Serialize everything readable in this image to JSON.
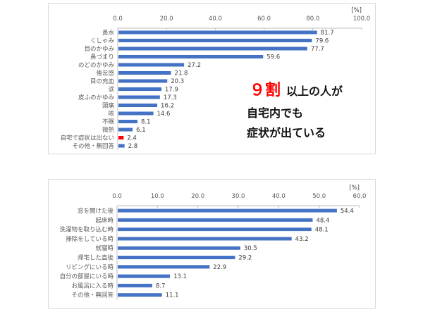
{
  "chart_data": [
    {
      "type": "bar",
      "orientation": "horizontal",
      "unit_label": "[%]",
      "xlim": [
        0,
        100
      ],
      "ticks": [
        "0.0",
        "20.0",
        "40.0",
        "60.0",
        "80.0",
        "100.0"
      ],
      "categories": [
        "鼻水",
        "くしゃみ",
        "目のかゆみ",
        "鼻づまり",
        "のどのかゆみ",
        "倦怠感",
        "目の充血",
        "涙",
        "皮ふのかゆみ",
        "頭痛",
        "咳",
        "不眠",
        "微熱",
        "自宅で症状は出ない",
        "その他・無回答"
      ],
      "values": [
        81.7,
        79.6,
        77.7,
        59.6,
        27.2,
        21.8,
        20.3,
        17.9,
        17.3,
        16.2,
        14.6,
        8.1,
        6.1,
        2.4,
        2.8
      ],
      "labels": [
        "81.7",
        "79.6",
        "77.7",
        "59.6",
        "27.2",
        "21.8",
        "20.3",
        "17.9",
        "17.3",
        "16.2",
        "14.6",
        "8.1",
        "6.1",
        "2.4",
        "2.8"
      ],
      "bar_color": "#4472c4",
      "highlight_color": "#ff0000",
      "highlight_index": 13,
      "grid": false,
      "annotation": {
        "highlight": "９割",
        "line1": "以上の人が",
        "line2": "自宅内でも",
        "line3": "症状が出ている"
      }
    },
    {
      "type": "bar",
      "orientation": "horizontal",
      "unit_label": "[%]",
      "xlim": [
        0,
        60
      ],
      "ticks": [
        "0.0",
        "10.0",
        "20.0",
        "30.0",
        "40.0",
        "50.0",
        "60.0"
      ],
      "categories": [
        "窓を開けた後",
        "起床時",
        "洗濯物を取り込む時",
        "掃除をしている時",
        "就寝時",
        "帰宅した直後",
        "リビングにいる時",
        "自分の部屋にいる時",
        "お風呂に入る時",
        "その他・無回答"
      ],
      "values": [
        54.4,
        48.4,
        48.1,
        43.2,
        30.5,
        29.2,
        22.9,
        13.1,
        8.7,
        11.1
      ],
      "labels": [
        "54.4",
        "48.4",
        "48.1",
        "43.2",
        "30.5",
        "29.2",
        "22.9",
        "13.1",
        "8.7",
        "11.1"
      ],
      "bar_color": "#4472c4",
      "grid": false
    }
  ]
}
